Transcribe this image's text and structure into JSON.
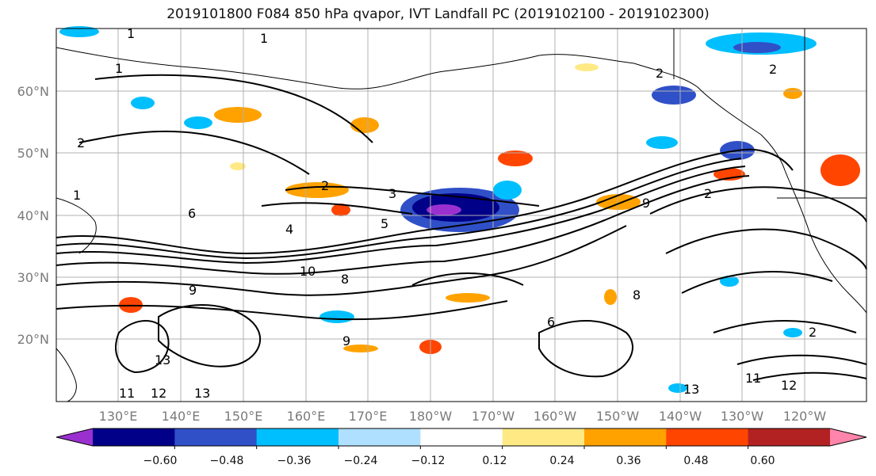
{
  "title": "2019101800 F084 850 hPa qvapor, IVT Landfall PC (2019102100 - 2019102300)",
  "map": {
    "lat_labels": [
      "60°N",
      "50°N",
      "40°N",
      "30°N",
      "20°N"
    ],
    "lon_labels": [
      "130°E",
      "140°E",
      "150°E",
      "160°E",
      "170°E",
      "180°W",
      "170°W",
      "160°W",
      "150°W",
      "140°W",
      "130°W",
      "120°W"
    ],
    "contour_labels": [
      "1",
      "1",
      "1",
      "2",
      "2",
      "2",
      "2",
      "3",
      "4",
      "5",
      "6",
      "8",
      "9",
      "9",
      "10",
      "11",
      "12",
      "13",
      "13",
      "2",
      "11",
      "12",
      "13",
      "9",
      "8",
      "6",
      "2",
      "1"
    ],
    "line_color": "#000000",
    "grid_color": "#b0b0b0"
  },
  "colorbar": {
    "colors": [
      "#9b30d0",
      "#000088",
      "#3050c8",
      "#00bfff",
      "#b0e0ff",
      "#ffffff",
      "#ffe985",
      "#ffa200",
      "#ff4500",
      "#b22222",
      "#ff85ab"
    ],
    "tick_labels": [
      "−0.60",
      "−0.48",
      "−0.36",
      "−0.24",
      "−0.12",
      "0.12",
      "0.24",
      "0.36",
      "0.48",
      "0.60"
    ]
  }
}
